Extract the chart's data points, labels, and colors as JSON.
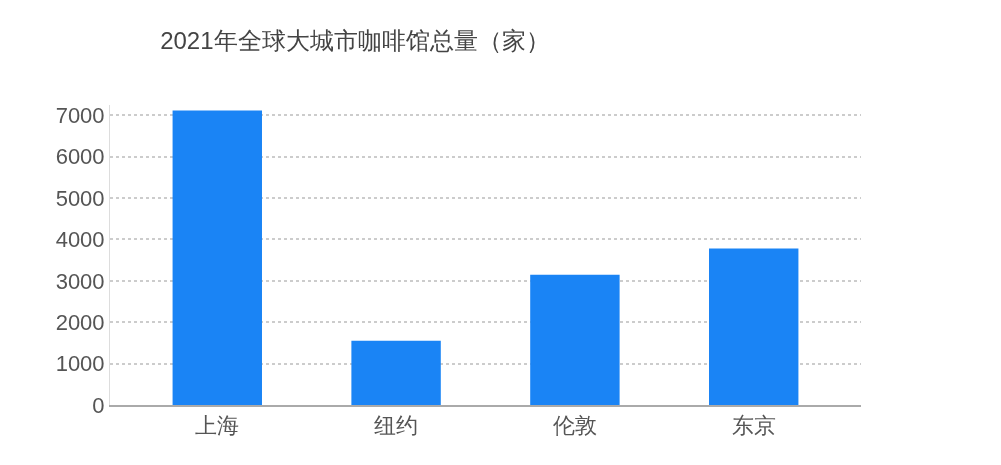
{
  "chart_data": {
    "type": "bar",
    "title": "2021年全球大城市咖啡馆总量（家）",
    "categories": [
      "上海",
      "纽约",
      "伦敦",
      "东京"
    ],
    "values": [
      7120,
      1550,
      3150,
      3780
    ],
    "color": "#1a84f5",
    "ylim": [
      0,
      7250
    ],
    "yticks": [
      0,
      1000,
      2000,
      3000,
      4000,
      5000,
      6000,
      7000
    ],
    "grid": "y"
  }
}
